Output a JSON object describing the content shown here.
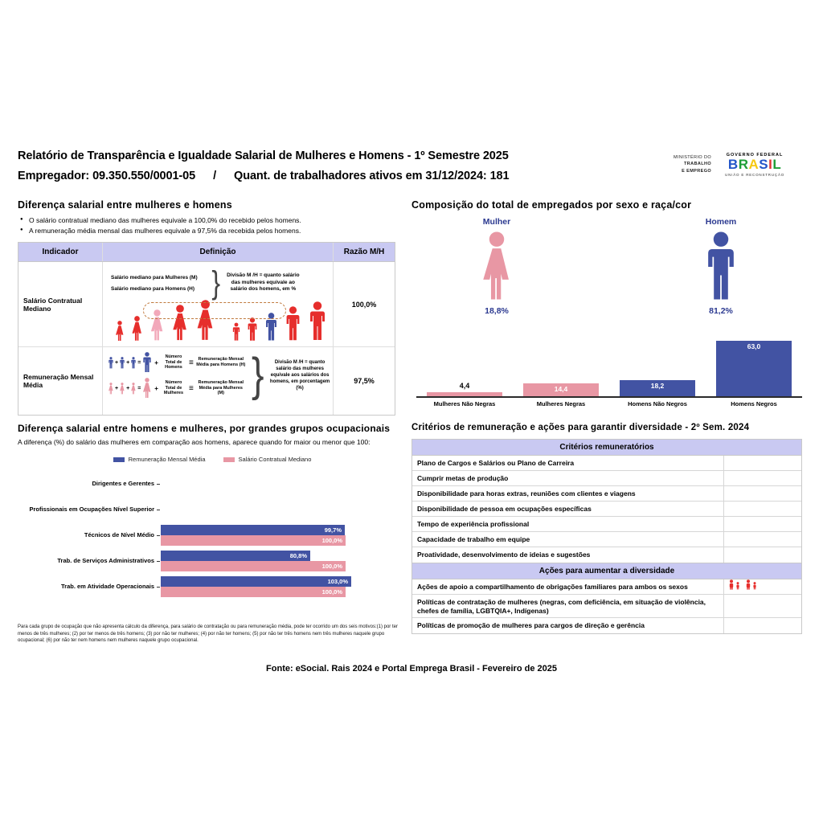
{
  "theme": {
    "blue": "#4253A3",
    "pink": "#E897A4",
    "pink_light": "#F2A8BA",
    "red": "#E62E2C",
    "navy": "#2B3990",
    "lavender": "#C9C9F2",
    "brasil_letter_colors": [
      "#2456C9",
      "#1E9E36",
      "#F6C913",
      "#2456C9",
      "#E03131",
      "#1E9E36"
    ]
  },
  "header": {
    "title": "Relatório de Transparência e Igualdade Salarial de Mulheres e Homens - 1º Semestre 2025",
    "employer_line": "Empregador: 09.350.550/0001-05",
    "separator": "/",
    "active_workers_line": "Quant. de trabalhadores ativos em 31/12/2024: 181",
    "logo": {
      "ministry_line1": "MINISTÉRIO DO",
      "ministry_line2": "TRABALHO",
      "ministry_line3": "E EMPREGO",
      "gov_top": "GOVERNO FEDERAL",
      "gov_name": "BRASIL",
      "gov_bottom": "UNIÃO E RECONSTRUÇÃO"
    }
  },
  "salary_gap": {
    "heading": "Diferença salarial entre mulheres e homens",
    "bullets": [
      "O salário contratual mediano das mulheres equivale a 100,0% do recebido pelos homens.",
      "A remuneração média mensal das mulheres equivale a 97,5% da recebida pelos homens."
    ],
    "table": {
      "headers": [
        "Indicador",
        "Definição",
        "Razão M/H"
      ],
      "row1": {
        "indicator": "Salário Contratual Mediano",
        "label_women": "Salário mediano para Mulheres (M)",
        "label_men": "Salário mediano para Homens (H)",
        "explain": "Divisão M /H = quanto salário das mulheres equivale ao salário dos homens, em %",
        "ratio": "100,0%"
      },
      "row2": {
        "indicator": "Remuneração Mensal Média",
        "men_count_label": "Número Total de Homens",
        "men_result_label": "Remuneração Mensal Média para Homens (H)",
        "women_count_label": "Número Total de Mulheres",
        "women_result_label": "Remuneração Mensal Média para Mulheres (M)",
        "explain": "Divisão M /H = quanto salário das mulheres equivale aos salários dos homens, em porcentagem (%)",
        "ratio": "97,5%"
      }
    }
  },
  "composition": {
    "heading": "Composição do total de empregados por sexo e raça/cor",
    "female_label": "Mulher",
    "male_label": "Homem",
    "female_pct": "18,8%",
    "male_pct": "81,2%",
    "bars": [
      {
        "label": "Mulheres Não Negras",
        "value": 4.4,
        "display": "4,4",
        "color": "pink",
        "label_pos": "above"
      },
      {
        "label": "Mulheres Negras",
        "value": 14.4,
        "display": "14,4",
        "color": "pink",
        "label_pos": "inside"
      },
      {
        "label": "Homens Não Negros",
        "value": 18.2,
        "display": "18,2",
        "color": "blue",
        "label_pos": "inside"
      },
      {
        "label": "Homens Negros",
        "value": 63.0,
        "display": "63,0",
        "color": "blue",
        "label_pos": "inside"
      }
    ]
  },
  "occupational": {
    "heading": "Diferença salarial entre homens e mulheres, por grandes grupos ocupacionais",
    "subtitle": "A diferença (%) do salário das mulheres em comparação aos homens, aparece quando for maior ou menor que 100:",
    "legend": [
      {
        "label": "Remuneração Mensal Média",
        "color": "blue"
      },
      {
        "label": "Salário Contratual Mediano",
        "color": "pink"
      }
    ],
    "categories": [
      {
        "label": "Dirigentes e Gerentes",
        "mensal": null,
        "mensal_display": null,
        "mediano": null,
        "mediano_display": null
      },
      {
        "label": "Profissionais em Ocupações Nível Superior",
        "mensal": null,
        "mensal_display": null,
        "mediano": null,
        "mediano_display": null
      },
      {
        "label": "Técnicos de Nível Médio",
        "mensal": 99.7,
        "mensal_display": "99,7%",
        "mediano": 100.0,
        "mediano_display": "100,0%"
      },
      {
        "label": "Trab. de Serviços Administrativos",
        "mensal": 80.8,
        "mensal_display": "80,8%",
        "mediano": 100.0,
        "mediano_display": "100,0%"
      },
      {
        "label": "Trab. em Atividade Operacionais",
        "mensal": 103.0,
        "mensal_display": "103,0%",
        "mediano": 100.0,
        "mediano_display": "100,0%"
      }
    ],
    "footnote": "Para cada grupo de ocupação que não apresenta cálculo da diferença, para salário de contratação ou para remuneração média, pode ter ocorrido um dos seis motivos:(1) por ter menos de três mulheres; (2) por ter menos de três homens; (3) por não ter mulheres; (4) por não ter homens; (5) por não ter três homens nem três mulheres naquele grupo ocupacional; (6) por não ter nem homens nem mulheres naquele grupo ocupacional."
  },
  "criteria": {
    "heading": "Critérios de remuneração e ações para garantir diversidade - 2º Sem. 2024",
    "remuneration_header": "Critérios remuneratórios",
    "remuneration_rows": [
      "Plano de Cargos e Salários ou Plano de Carreira",
      "Cumprir metas de produção",
      "Disponibilidade para horas extras, reuniões com clientes e viagens",
      "Disponibilidade de pessoa em ocupações específicas",
      "Tempo de experiência profissional",
      "Capacidade de trabalho em equipe",
      "Proatividade, desenvolvimento de ideias e sugestões"
    ],
    "diversity_header": "Ações para aumentar a diversidade",
    "diversity_rows": [
      {
        "text": "Ações de apoio a compartilhamento de obrigações familiares para ambos os sexos",
        "has_icons": true
      },
      {
        "text": "Políticas de contratação de mulheres (negras, com deficiência, em situação de violência, chefes de família, LGBTQIA+, Indígenas)",
        "has_icons": false
      },
      {
        "text": "Políticas de promoção de mulheres para cargos de direção e gerência",
        "has_icons": false
      }
    ]
  },
  "footer": "Fonte: eSocial. Rais 2024 e Portal Emprega Brasil - Fevereiro de 2025",
  "chart_data": [
    {
      "type": "bar",
      "title": "Composição do total de empregados por sexo e raça/cor",
      "categories": [
        "Mulheres Não Negras",
        "Mulheres Negras",
        "Homens Não Negros",
        "Homens Negros"
      ],
      "values": [
        4.4,
        14.4,
        18.2,
        63.0
      ],
      "unit": "%",
      "ylim": [
        0,
        70
      ],
      "grid": false,
      "colors": [
        "#E897A4",
        "#E897A4",
        "#4253A3",
        "#4253A3"
      ],
      "annotations": {
        "female_share": 18.8,
        "male_share": 81.2
      }
    },
    {
      "type": "bar",
      "orientation": "horizontal",
      "title": "Diferença salarial entre homens e mulheres, por grandes grupos ocupacionais",
      "categories": [
        "Dirigentes e Gerentes",
        "Profissionais em Ocupações Nível Superior",
        "Técnicos de Nível Médio",
        "Trab. de Serviços Administrativos",
        "Trab. em Atividade Operacionais"
      ],
      "series": [
        {
          "name": "Remuneração Mensal Média",
          "values": [
            null,
            null,
            99.7,
            80.8,
            103.0
          ]
        },
        {
          "name": "Salário Contratual Mediano",
          "values": [
            null,
            null,
            100.0,
            100.0,
            100.0
          ]
        }
      ],
      "unit": "%",
      "xlim": [
        0,
        105
      ],
      "legend_position": "top",
      "grid": false
    }
  ]
}
